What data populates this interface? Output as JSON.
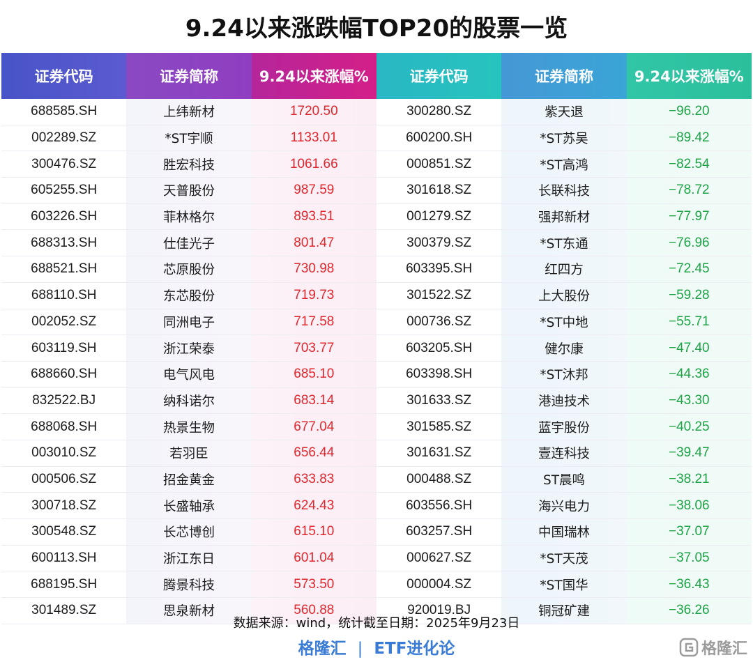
{
  "title": "9.24以来涨跌幅TOP20的股票一览",
  "headers": [
    "证券代码",
    "证券简称",
    "9.24以来涨幅%",
    "证券代码",
    "证券简称",
    "9.24以来涨幅%"
  ],
  "rows": [
    {
      "code_up": "688585.SH",
      "name_up": "上纬新材",
      "pct_up": "1720.50",
      "code_down": "300280.SZ",
      "name_down": "紫天退",
      "pct_down": "−96.20"
    },
    {
      "code_up": "002289.SZ",
      "name_up": "*ST宇顺",
      "pct_up": "1133.01",
      "code_down": "600200.SH",
      "name_down": "*ST苏吴",
      "pct_down": "−89.42"
    },
    {
      "code_up": "300476.SZ",
      "name_up": "胜宏科技",
      "pct_up": "1061.66",
      "code_down": "000851.SZ",
      "name_down": "*ST高鸿",
      "pct_down": "−82.54"
    },
    {
      "code_up": "605255.SH",
      "name_up": "天普股份",
      "pct_up": "987.59",
      "code_down": "301618.SZ",
      "name_down": "长联科技",
      "pct_down": "−78.72"
    },
    {
      "code_up": "603226.SH",
      "name_up": "菲林格尔",
      "pct_up": "893.51",
      "code_down": "001279.SZ",
      "name_down": "强邦新材",
      "pct_down": "−77.97"
    },
    {
      "code_up": "688313.SH",
      "name_up": "仕佳光子",
      "pct_up": "801.47",
      "code_down": "300379.SZ",
      "name_down": "*ST东通",
      "pct_down": "−76.96"
    },
    {
      "code_up": "688521.SH",
      "name_up": "芯原股份",
      "pct_up": "730.98",
      "code_down": "603395.SH",
      "name_down": "红四方",
      "pct_down": "−72.45"
    },
    {
      "code_up": "688110.SH",
      "name_up": "东芯股份",
      "pct_up": "719.73",
      "code_down": "301522.SZ",
      "name_down": "上大股份",
      "pct_down": "−59.28"
    },
    {
      "code_up": "002052.SZ",
      "name_up": "同洲电子",
      "pct_up": "717.58",
      "code_down": "000736.SZ",
      "name_down": "*ST中地",
      "pct_down": "−55.71"
    },
    {
      "code_up": "603119.SH",
      "name_up": "浙江荣泰",
      "pct_up": "703.77",
      "code_down": "603205.SH",
      "name_down": "健尔康",
      "pct_down": "−47.40"
    },
    {
      "code_up": "688660.SH",
      "name_up": "电气风电",
      "pct_up": "685.10",
      "code_down": "603398.SH",
      "name_down": "*ST沐邦",
      "pct_down": "−44.36"
    },
    {
      "code_up": "832522.BJ",
      "name_up": "纳科诺尔",
      "pct_up": "683.14",
      "code_down": "301633.SZ",
      "name_down": "港迪技术",
      "pct_down": "−43.30"
    },
    {
      "code_up": "688068.SH",
      "name_up": "热景生物",
      "pct_up": "677.04",
      "code_down": "301585.SZ",
      "name_down": "蓝宇股份",
      "pct_down": "−40.25"
    },
    {
      "code_up": "003010.SZ",
      "name_up": "若羽臣",
      "pct_up": "656.44",
      "code_down": "301631.SZ",
      "name_down": "壹连科技",
      "pct_down": "−39.47"
    },
    {
      "code_up": "000506.SZ",
      "name_up": "招金黄金",
      "pct_up": "633.83",
      "code_down": "000488.SZ",
      "name_down": "ST晨鸣",
      "pct_down": "−38.21"
    },
    {
      "code_up": "300718.SZ",
      "name_up": "长盛轴承",
      "pct_up": "624.43",
      "code_down": "603556.SH",
      "name_down": "海兴电力",
      "pct_down": "−38.06"
    },
    {
      "code_up": "300548.SZ",
      "name_up": "长芯博创",
      "pct_up": "615.10",
      "code_down": "603257.SH",
      "name_down": "中国瑞林",
      "pct_down": "−37.07"
    },
    {
      "code_up": "600113.SH",
      "name_up": "浙江东日",
      "pct_up": "601.04",
      "code_down": "000627.SZ",
      "name_down": "*ST天茂",
      "pct_down": "−37.05"
    },
    {
      "code_up": "688195.SH",
      "name_up": "腾景科技",
      "pct_up": "573.50",
      "code_down": "000004.SZ",
      "name_down": "*ST国华",
      "pct_down": "−36.43"
    },
    {
      "code_up": "301489.SZ",
      "name_up": "思泉新材",
      "pct_up": "560.88",
      "code_down": "920019.BJ",
      "name_down": "铜冠矿建",
      "pct_down": "−36.26"
    }
  ],
  "source_note": "数据来源：wind，统计截至日期：2025年9月23日",
  "footer": {
    "brand": "格隆汇",
    "separator": "|",
    "series": "ETF进化论"
  },
  "watermark": {
    "text": "格隆汇"
  },
  "colors": {
    "up": "#e0262d",
    "down": "#1ea347",
    "footer": "#3a7bd5"
  }
}
